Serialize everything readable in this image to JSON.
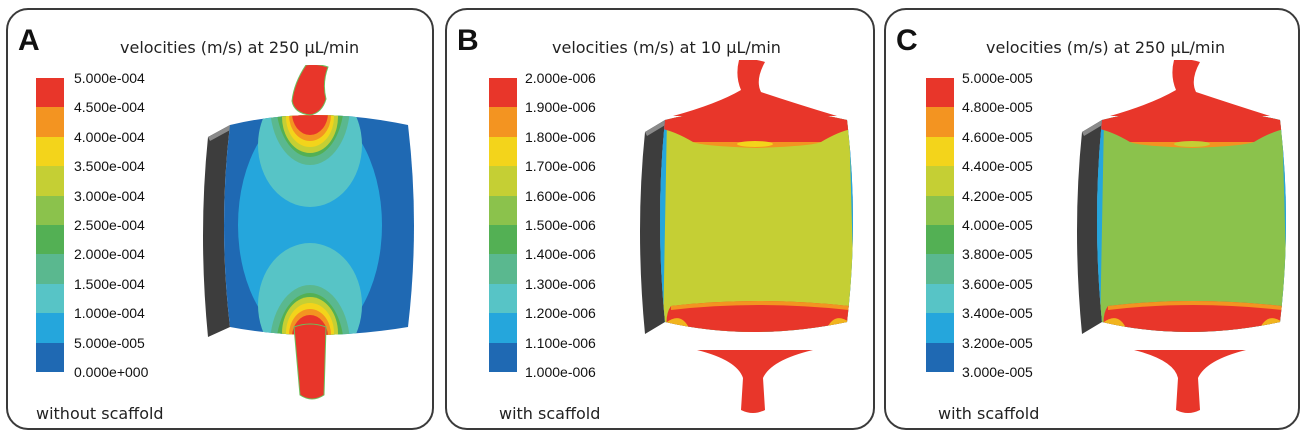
{
  "panels": [
    {
      "letter": "A",
      "title": "velocities (m/s) at 250 µL/min",
      "note": "without scaffold",
      "colorbar": {
        "labels": [
          "5.000e-004",
          "4.500e-004",
          "4.000e-004",
          "3.500e-004",
          "3.000e-004",
          "2.500e-004",
          "2.000e-004",
          "1.500e-004",
          "1.000e-004",
          "5.000e-005",
          "0.000e+000"
        ],
        "colors": [
          "#e8362a",
          "#f39421",
          "#f3d41b",
          "#c5cf34",
          "#8bc24c",
          "#53b054",
          "#5ab88f",
          "#57c4c6",
          "#25a6dc",
          "#1f69b3"
        ]
      }
    },
    {
      "letter": "B",
      "title": "velocities (m/s) at 10 µL/min",
      "note": "with scaffold",
      "colorbar": {
        "labels": [
          "2.000e-006",
          "1.900e-006",
          "1.800e-006",
          "1.700e-006",
          "1.600e-006",
          "1.500e-006",
          "1.400e-006",
          "1.300e-006",
          "1.200e-006",
          "1.100e-006",
          "1.000e-006"
        ],
        "colors": [
          "#e8362a",
          "#f39421",
          "#f3d41b",
          "#c5cf34",
          "#8bc24c",
          "#53b054",
          "#5ab88f",
          "#57c4c6",
          "#25a6dc",
          "#1f69b3"
        ]
      }
    },
    {
      "letter": "C",
      "title": "velocities (m/s) at 250 µL/min",
      "note": "with scaffold",
      "colorbar": {
        "labels": [
          "5.000e-005",
          "4.800e-005",
          "4.600e-005",
          "4.400e-005",
          "4.200e-005",
          "4.000e-005",
          "3.800e-005",
          "3.600e-005",
          "3.400e-005",
          "3.200e-005",
          "3.000e-005"
        ],
        "colors": [
          "#e8362a",
          "#f39421",
          "#f3d41b",
          "#c5cf34",
          "#8bc24c",
          "#53b054",
          "#5ab88f",
          "#57c4c6",
          "#25a6dc",
          "#1f69b3"
        ]
      }
    }
  ]
}
